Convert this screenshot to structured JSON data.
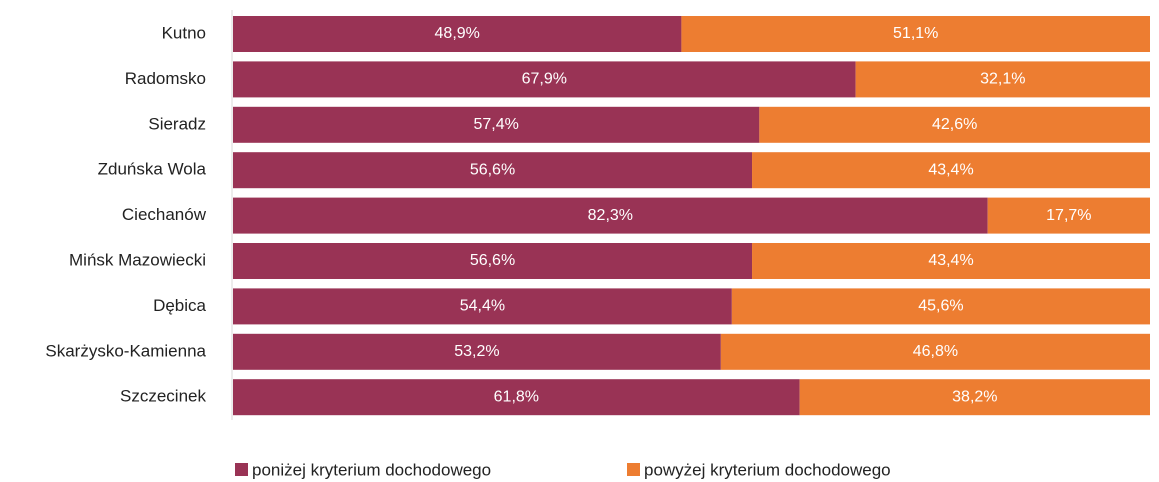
{
  "chart_data": {
    "type": "bar",
    "orientation": "horizontal",
    "stacked": true,
    "categories": [
      "Kutno",
      "Radomsko",
      "Sieradz",
      "Zduńska Wola",
      "Ciechanów",
      "Mińsk Mazowiecki",
      "Dębica",
      "Skarżysko-Kamienna",
      "Szczecinek"
    ],
    "series": [
      {
        "name": "poniżej kryterium dochodowego",
        "color": "#993355",
        "values": [
          48.9,
          67.9,
          57.4,
          56.6,
          82.3,
          56.6,
          54.4,
          53.2,
          61.8
        ],
        "value_labels": [
          "48,9%",
          "67,9%",
          "57,4%",
          "56,6%",
          "82,3%",
          "56,6%",
          "54,4%",
          "53,2%",
          "61,8%"
        ]
      },
      {
        "name": "powyżej kryterium dochodowego",
        "color": "#ED7D31",
        "values": [
          51.1,
          32.1,
          42.6,
          43.4,
          17.7,
          43.4,
          45.6,
          46.8,
          38.2
        ],
        "value_labels": [
          "51,1%",
          "32,1%",
          "42,6%",
          "43,4%",
          "17,7%",
          "43,4%",
          "45,6%",
          "46,8%",
          "38,2%"
        ]
      }
    ],
    "xlim": [
      0,
      100
    ],
    "legend": "bottom"
  }
}
